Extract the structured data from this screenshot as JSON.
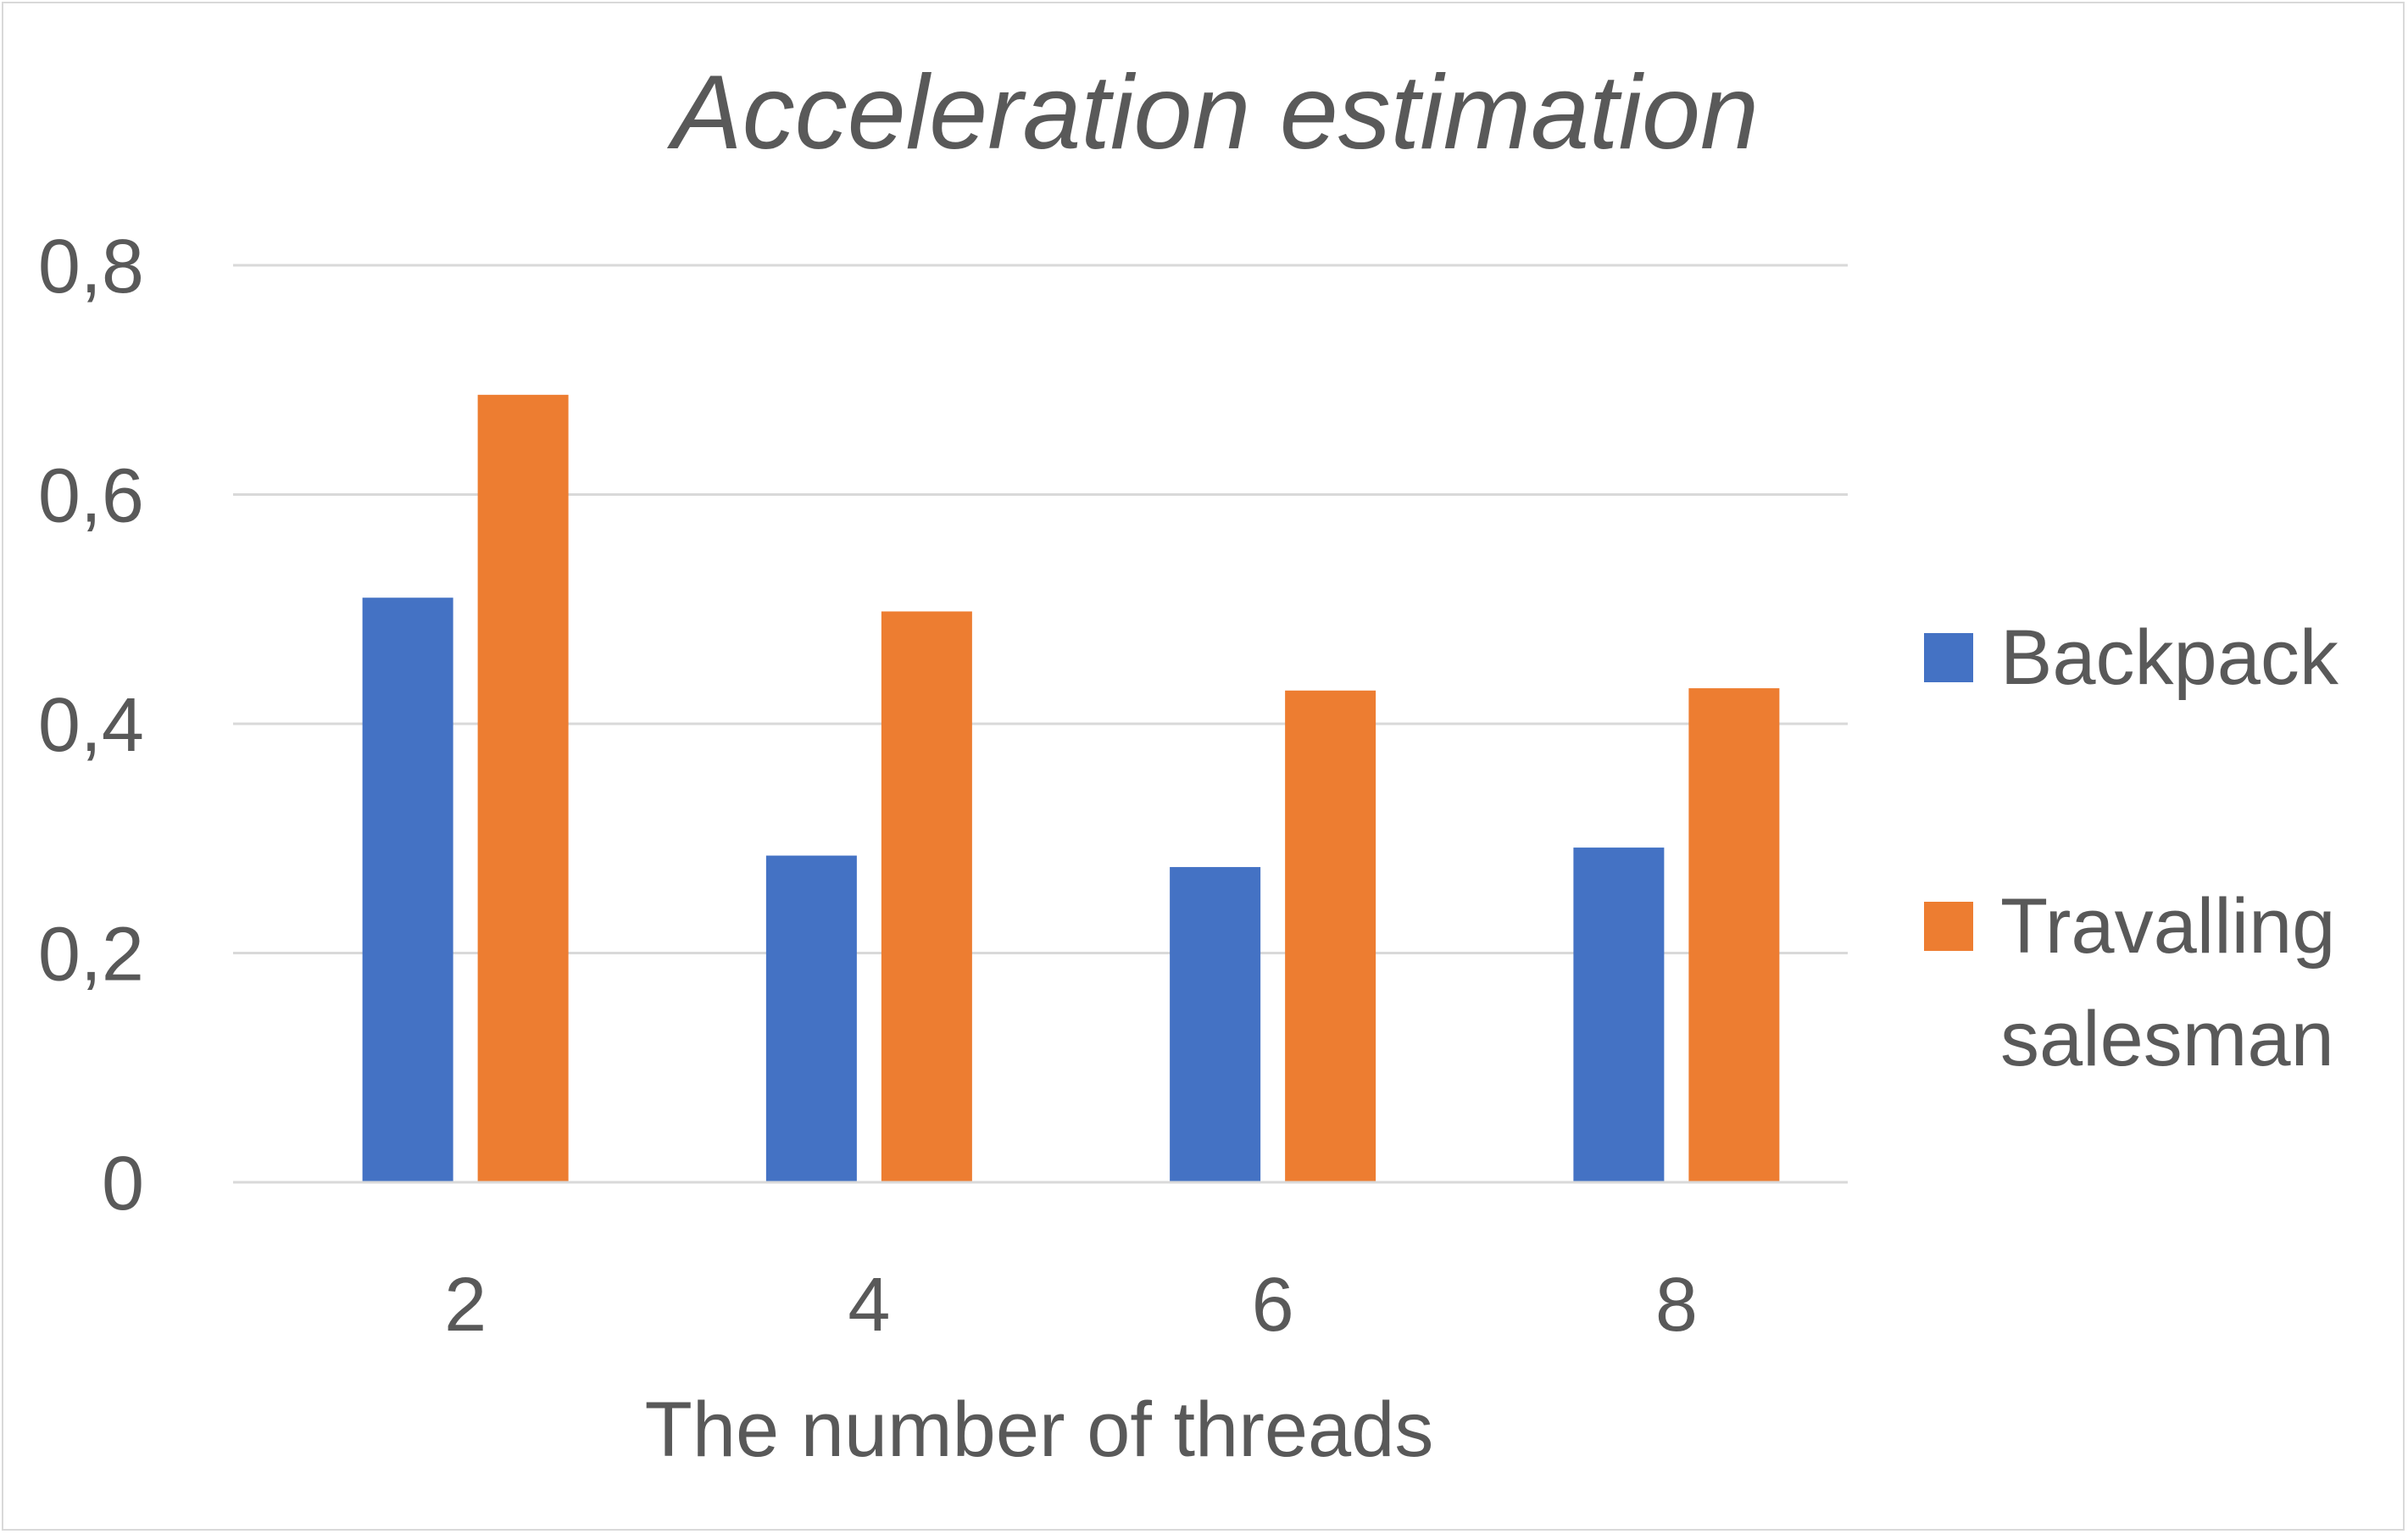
{
  "chart_data": {
    "type": "bar",
    "title": "Acceleration estimation",
    "xlabel": "The number of threads",
    "ylabel": "",
    "categories": [
      "2",
      "4",
      "6",
      "8"
    ],
    "series": [
      {
        "name": "Backpack",
        "color": "#4472c4",
        "values": [
          0.51,
          0.285,
          0.275,
          0.292
        ]
      },
      {
        "name": "Travalling salesman",
        "legend_lines": [
          "Travalling",
          "salesman"
        ],
        "color": "#ed7d31",
        "values": [
          0.687,
          0.498,
          0.429,
          0.431
        ]
      }
    ],
    "ylim": [
      0,
      0.8
    ],
    "yticks": [
      0,
      0.2,
      0.4,
      0.6,
      0.8
    ],
    "ytick_labels": [
      "0",
      "0,2",
      "0,4",
      "0,6",
      "0,8"
    ],
    "grid": true,
    "legend_position": "right"
  }
}
